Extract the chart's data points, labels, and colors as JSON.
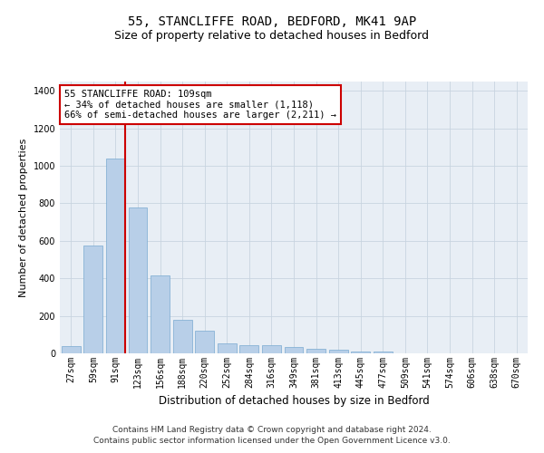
{
  "title1": "55, STANCLIFFE ROAD, BEDFORD, MK41 9AP",
  "title2": "Size of property relative to detached houses in Bedford",
  "xlabel": "Distribution of detached houses by size in Bedford",
  "ylabel": "Number of detached properties",
  "categories": [
    "27sqm",
    "59sqm",
    "91sqm",
    "123sqm",
    "156sqm",
    "188sqm",
    "220sqm",
    "252sqm",
    "284sqm",
    "316sqm",
    "349sqm",
    "381sqm",
    "413sqm",
    "445sqm",
    "477sqm",
    "509sqm",
    "541sqm",
    "574sqm",
    "606sqm",
    "638sqm",
    "670sqm"
  ],
  "values": [
    40,
    575,
    1040,
    780,
    415,
    180,
    120,
    55,
    45,
    45,
    35,
    25,
    20,
    10,
    8,
    2,
    1,
    0,
    0,
    0,
    0
  ],
  "bar_color": "#b8cfe8",
  "bar_edge_color": "#7aaad0",
  "vline_color": "#cc0000",
  "annotation_box_text": "55 STANCLIFFE ROAD: 109sqm\n← 34% of detached houses are smaller (1,118)\n66% of semi-detached houses are larger (2,211) →",
  "annotation_box_color": "#cc0000",
  "annotation_box_fill": "#ffffff",
  "ylim": [
    0,
    1450
  ],
  "yticks": [
    0,
    200,
    400,
    600,
    800,
    1000,
    1200,
    1400
  ],
  "plot_bg_color": "#e8eef5",
  "footnote1": "Contains HM Land Registry data © Crown copyright and database right 2024.",
  "footnote2": "Contains public sector information licensed under the Open Government Licence v3.0.",
  "title1_fontsize": 10,
  "title2_fontsize": 9,
  "xlabel_fontsize": 8.5,
  "ylabel_fontsize": 8,
  "tick_fontsize": 7,
  "annotation_fontsize": 7.5,
  "footnote_fontsize": 6.5
}
